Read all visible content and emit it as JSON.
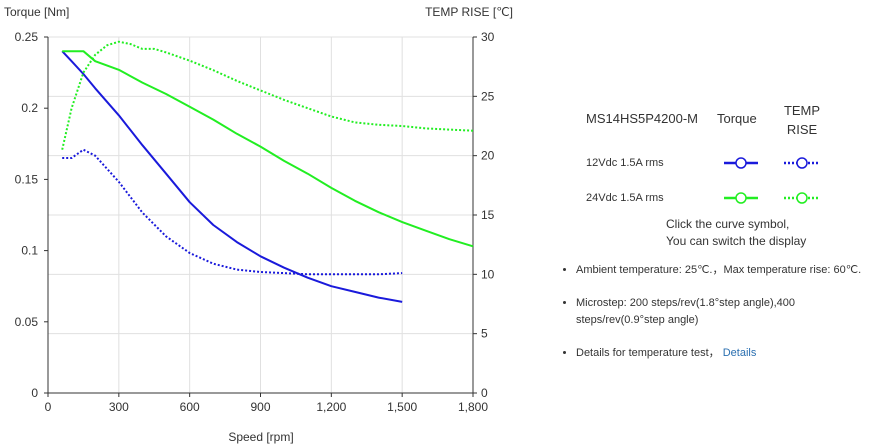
{
  "chart_data": {
    "type": "line",
    "left_axis_title": "Torque  [Nm]",
    "right_axis_title": "TEMP RISE [℃]",
    "xlabel": "Speed [rpm]",
    "xlim": [
      0,
      1800
    ],
    "ylim_left": [
      0,
      0.25
    ],
    "ylim_right": [
      0,
      30
    ],
    "x_ticks": [
      "0",
      "300",
      "600",
      "900",
      "1,200",
      "1,500",
      "1,800"
    ],
    "x_tick_values": [
      0,
      300,
      600,
      900,
      1200,
      1500,
      1800
    ],
    "y_left_ticks": [
      "0",
      "0.05",
      "0.1",
      "0.15",
      "0.2",
      "0.25"
    ],
    "y_left_tick_values": [
      0,
      0.05,
      0.1,
      0.15,
      0.2,
      0.25
    ],
    "y_right_ticks": [
      "0",
      "5",
      "10",
      "15",
      "20",
      "25",
      "30"
    ],
    "y_right_tick_values": [
      0,
      5,
      10,
      15,
      20,
      25,
      30
    ],
    "grid": true,
    "series": [
      {
        "name": "12Vdc 1.5A rms Torque",
        "axis": "left",
        "style": "solid",
        "color": "#1a1adb",
        "x": [
          60,
          100,
          150,
          200,
          300,
          400,
          500,
          600,
          700,
          800,
          900,
          1000,
          1100,
          1200,
          1300,
          1400,
          1500
        ],
        "y": [
          0.24,
          0.233,
          0.224,
          0.214,
          0.195,
          0.174,
          0.154,
          0.134,
          0.118,
          0.106,
          0.096,
          0.088,
          0.081,
          0.075,
          0.071,
          0.067,
          0.064
        ]
      },
      {
        "name": "12Vdc 1.5A rms TEMP RISE",
        "axis": "right",
        "style": "dotted",
        "color": "#1a1adb",
        "x": [
          60,
          100,
          150,
          200,
          300,
          400,
          500,
          600,
          700,
          800,
          900,
          1000,
          1100,
          1200,
          1300,
          1400,
          1500
        ],
        "y": [
          19.8,
          19.8,
          20.5,
          20.0,
          17.8,
          15.2,
          13.2,
          11.8,
          10.9,
          10.4,
          10.2,
          10.1,
          10.0,
          10.0,
          10.0,
          10.0,
          10.1
        ]
      },
      {
        "name": "24Vdc 1.5A rms Torque",
        "axis": "left",
        "style": "solid",
        "color": "#22ee22",
        "x": [
          60,
          100,
          150,
          200,
          300,
          400,
          500,
          600,
          700,
          800,
          900,
          1000,
          1100,
          1200,
          1300,
          1400,
          1500,
          1600,
          1700,
          1800
        ],
        "y": [
          0.24,
          0.24,
          0.24,
          0.233,
          0.227,
          0.218,
          0.21,
          0.201,
          0.192,
          0.182,
          0.173,
          0.163,
          0.154,
          0.144,
          0.135,
          0.127,
          0.12,
          0.114,
          0.108,
          0.103
        ]
      },
      {
        "name": "24Vdc 1.5A rms TEMP RISE",
        "axis": "right",
        "style": "dotted",
        "color": "#22ee22",
        "x": [
          60,
          100,
          150,
          200,
          250,
          300,
          350,
          400,
          450,
          500,
          600,
          700,
          800,
          900,
          1000,
          1100,
          1200,
          1300,
          1400,
          1500,
          1600,
          1700,
          1800
        ],
        "y": [
          20.5,
          24.0,
          27.0,
          28.5,
          29.3,
          29.6,
          29.4,
          29.0,
          29.0,
          28.7,
          28.0,
          27.2,
          26.3,
          25.5,
          24.7,
          24.0,
          23.3,
          22.8,
          22.6,
          22.5,
          22.3,
          22.2,
          22.1
        ]
      }
    ]
  },
  "legend": {
    "model": "MS14HS5P4200-M",
    "torque_header": "Torque",
    "temp_header_line1": "TEMP",
    "temp_header_line2": "RISE",
    "rows": [
      {
        "label": "12Vdc   1.5A rms",
        "color": "#1a1adb"
      },
      {
        "label": "24Vdc   1.5A rms",
        "color": "#22ee22"
      }
    ],
    "hint_line1": "Click the curve symbol,",
    "hint_line2": "You can switch the display"
  },
  "notes": {
    "ambient": "Ambient temperature: 25℃.，Max temperature rise: 60℃.",
    "microstep": "Microstep: 200 steps/rev(1.8°step angle),400 steps/rev(0.9°step angle)",
    "details_prefix": "Details for temperature test，",
    "details_link": "Details"
  }
}
